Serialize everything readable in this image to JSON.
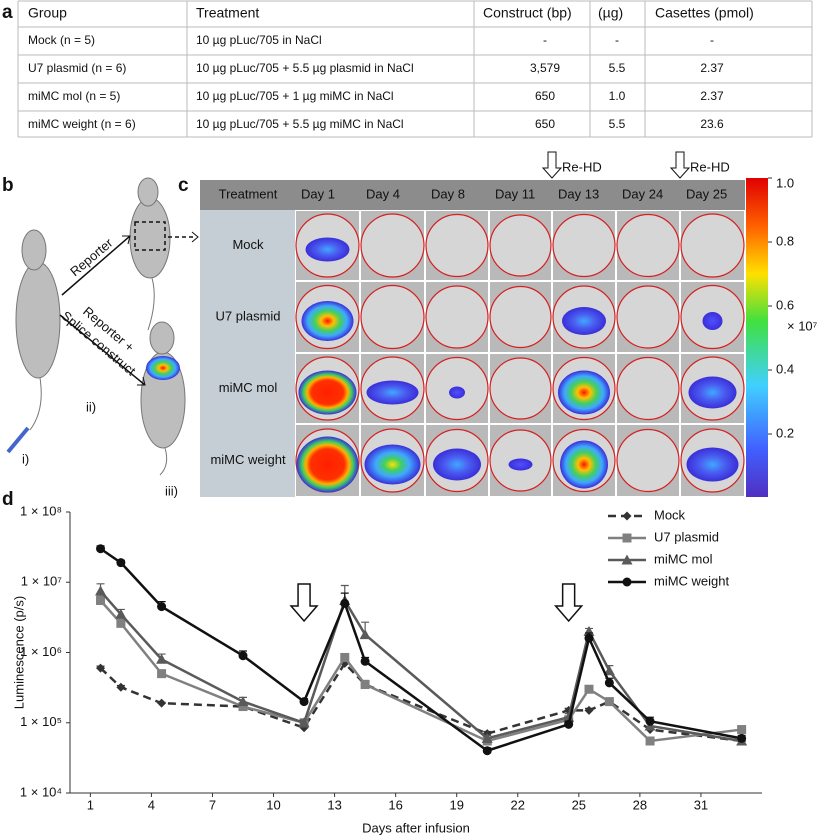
{
  "panel_labels": [
    "a",
    "b",
    "c",
    "d"
  ],
  "table": {
    "columns": [
      "Group",
      "Treatment",
      "Construct (bp)",
      "(µg)",
      "Casettes (pmol)"
    ],
    "rows": [
      [
        "Mock (n = 5)",
        "10 µg pLuc/705 in NaCl",
        "-",
        "-",
        "-"
      ],
      [
        "U7 plasmid (n = 6)",
        "10 µg pLuc/705 + 5.5 µg plasmid in NaCl",
        "3,579",
        "5.5",
        "2.37"
      ],
      [
        "miMC mol (n = 5)",
        "10 µg pLuc/705 + 1 µg miMC in NaCl",
        "650",
        "1.0",
        "2.37"
      ],
      [
        "miMC weight (n = 6)",
        "10 µg pLuc/705 + 5.5 µg miMC in NaCl",
        "650",
        "5.5",
        "23.6"
      ]
    ]
  },
  "schematic": {
    "reporter": "Reporter",
    "reporter_splice": [
      "Reporter +",
      "Splice construct"
    ],
    "steps": [
      "i)",
      "ii)",
      "iii)"
    ]
  },
  "imaging": {
    "header": "Treatment",
    "days": [
      "Day 1",
      "Day 4",
      "Day 8",
      "Day 11",
      "Day 13",
      "Day 24",
      "Day 25"
    ],
    "groups": [
      "Mock",
      "U7 plasmid",
      "miMC mol",
      "miMC weight"
    ],
    "redosing": [
      "Re-HD",
      "Re-HD"
    ],
    "colorbar": {
      "lim": [
        0,
        1
      ],
      "ticks": [
        {
          "value": 1,
          "label": "1.0"
        },
        0.8,
        0.6,
        0.4,
        0.2
      ],
      "multiplier": "× 10⁷"
    }
  },
  "chart_data": {
    "type": "line",
    "xlabel": "Days after infusion",
    "ylabel": "Luminescence (p/s)",
    "x": [
      1.5,
      2.5,
      4.5,
      8.5,
      11.5,
      13.5,
      14.5,
      20.5,
      24.5,
      25.5,
      26.5,
      28.5,
      33
    ],
    "series": [
      {
        "name": "Mock",
        "color": "#333333",
        "marker": "diamond",
        "dash": true,
        "values": [
          600000,
          320000,
          190000,
          170000,
          85000,
          700000,
          350000,
          70000,
          150000,
          150000,
          200000,
          80000,
          55000
        ],
        "errors": [
          40000,
          20000,
          5000,
          10000,
          5000,
          100000,
          50000,
          5000,
          10000,
          10000,
          10000,
          5000,
          5000
        ]
      },
      {
        "name": "U7 plasmid",
        "color": "#808080",
        "marker": "square",
        "dash": false,
        "values": [
          5500000,
          2600000,
          500000,
          170000,
          100000,
          850000,
          350000,
          55000,
          110000,
          300000,
          200000,
          55000,
          80000
        ],
        "errors": [
          1000000,
          400000,
          60000,
          20000,
          10000,
          100000,
          40000,
          5000,
          15000,
          30000,
          20000,
          5000,
          8000
        ]
      },
      {
        "name": "miMC mol",
        "color": "#5a5a5a",
        "marker": "triangle",
        "dash": false,
        "values": [
          7500000,
          3500000,
          800000,
          200000,
          100000,
          5500000,
          1800000,
          60000,
          120000,
          2000000,
          550000,
          90000,
          55000
        ],
        "errors": [
          2000000,
          600000,
          150000,
          30000,
          10000,
          3500000,
          900000,
          6000,
          15000,
          200000,
          100000,
          10000,
          5000
        ]
      },
      {
        "name": "miMC weight",
        "color": "#111111",
        "marker": "circle",
        "dash": false,
        "values": [
          30000000,
          19000000,
          4500000,
          900000,
          200000,
          5000000,
          750000,
          40000,
          95000,
          1600000,
          370000,
          105000,
          60000
        ],
        "errors": [
          3000000,
          1500000,
          800000,
          150000,
          20000,
          2000000,
          100000,
          4000,
          10000,
          300000,
          60000,
          15000,
          6000
        ]
      }
    ],
    "xlim": [
      0,
      34
    ],
    "ylim": [
      10000,
      100000000
    ],
    "log_y": true,
    "xticks": [
      1,
      4,
      7,
      10,
      13,
      16,
      19,
      22,
      25,
      28,
      31
    ],
    "yticks": [
      {
        "value": 10000,
        "label": "1 × 10⁴"
      },
      {
        "value": 100000,
        "label": "1 × 10⁵"
      },
      {
        "value": 1000000,
        "label": "1 × 10⁶"
      },
      {
        "value": 10000000,
        "label": "1 × 10⁷"
      },
      {
        "value": 100000000,
        "label": "1 × 10⁸"
      }
    ],
    "grid": false,
    "legend": "upper right",
    "arrows_x": [
      11.5,
      24.5
    ]
  }
}
